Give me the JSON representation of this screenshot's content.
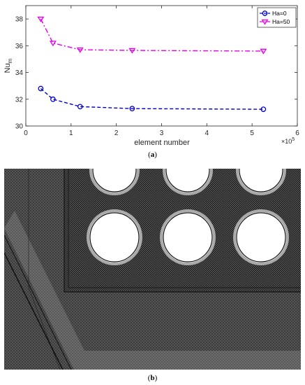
{
  "chart_data": {
    "type": "line",
    "title": "",
    "xlabel": "element number",
    "ylabel": "Nu",
    "ylabel_subscript": "m",
    "x_multiplier": "×10",
    "x_multiplier_exp": "5",
    "xlim": [
      0,
      6
    ],
    "ylim": [
      30,
      39
    ],
    "x_ticks": [
      "0",
      "1",
      "2",
      "3",
      "4",
      "5",
      "6"
    ],
    "y_ticks": [
      "30",
      "32",
      "34",
      "36",
      "38"
    ],
    "legend_position": "top-right",
    "grid": false,
    "series": [
      {
        "name": "Ha=0",
        "color": "#0000cc",
        "marker": "circle",
        "line": "dashed",
        "x": [
          0.33,
          0.6,
          1.2,
          2.35,
          5.25
        ],
        "y": [
          32.8,
          32.0,
          31.45,
          31.3,
          31.25
        ]
      },
      {
        "name": "Ha=50",
        "color": "#e600e6",
        "marker": "triangle-down",
        "line": "dashdot",
        "x": [
          0.33,
          0.6,
          1.2,
          2.35,
          5.25
        ],
        "y": [
          38.0,
          36.2,
          35.7,
          35.65,
          35.6
        ]
      }
    ]
  },
  "captions": {
    "a": "a",
    "b": "b"
  }
}
